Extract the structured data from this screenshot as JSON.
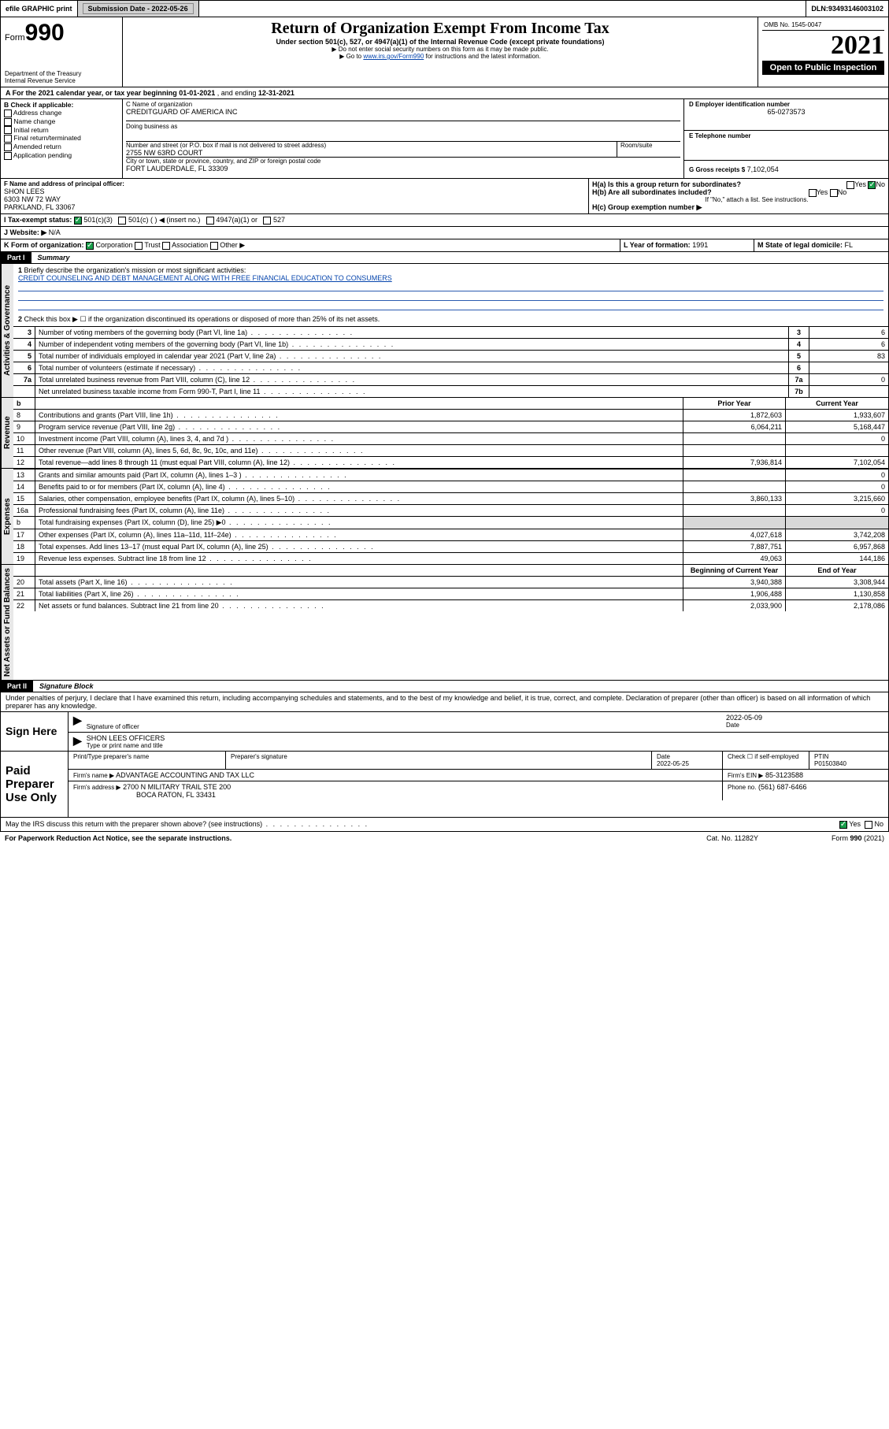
{
  "topbar": {
    "efile": "efile GRAPHIC print",
    "subdate_lbl": "Submission Date - ",
    "subdate": "2022-05-26",
    "dln_lbl": "DLN: ",
    "dln": "93493146003102"
  },
  "header": {
    "form_word": "Form",
    "form_num": "990",
    "dept": "Department of the Treasury\nInternal Revenue Service",
    "title": "Return of Organization Exempt From Income Tax",
    "sub1": "Under section 501(c), 527, or 4947(a)(1) of the Internal Revenue Code (except private foundations)",
    "sub2": "▶ Do not enter social security numbers on this form as it may be made public.",
    "sub3": "▶ Go to www.irs.gov/Form990 for instructions and the latest information.",
    "omb": "OMB No. 1545-0047",
    "year": "2021",
    "open": "Open to Public Inspection"
  },
  "lineA": {
    "prefix": "A For the 2021 calendar year, or tax year beginning ",
    "begin": "01-01-2021",
    "mid": " , and ending ",
    "end": "12-31-2021"
  },
  "boxB": {
    "lbl": "B Check if applicable:",
    "items": [
      "Address change",
      "Name change",
      "Initial return",
      "Final return/terminated",
      "Amended return",
      "Application pending"
    ]
  },
  "boxC": {
    "name_lbl": "C Name of organization",
    "name": "CREDITGUARD OF AMERICA INC",
    "dba_lbl": "Doing business as",
    "addr_lbl": "Number and street (or P.O. box if mail is not delivered to street address)",
    "room_lbl": "Room/suite",
    "addr": "2755 NW 63RD COURT",
    "city_lbl": "City or town, state or province, country, and ZIP or foreign postal code",
    "city": "FORT LAUDERDALE, FL  33309"
  },
  "boxD": {
    "lbl": "D Employer identification number",
    "val": "65-0273573"
  },
  "boxE": {
    "lbl": "E Telephone number",
    "val": ""
  },
  "boxG": {
    "lbl": "G Gross receipts $",
    "val": "7,102,054"
  },
  "boxF": {
    "lbl": "F Name and address of principal officer:",
    "name": "SHON LEES",
    "addr1": "6303 NW 72 WAY",
    "addr2": "PARKLAND, FL  33067"
  },
  "boxH": {
    "a": "H(a)  Is this a group return for subordinates?",
    "b": "H(b)  Are all subordinates included?",
    "note": "If \"No,\" attach a list. See instructions.",
    "c": "H(c)  Group exemption number ▶",
    "yes": "Yes",
    "no": "No"
  },
  "lineI": {
    "lbl": "I  Tax-exempt status:",
    "a": "501(c)(3)",
    "b": "501(c) (  ) ◀ (insert no.)",
    "c": "4947(a)(1) or",
    "d": "527"
  },
  "lineJ": {
    "lbl": "J  Website: ▶",
    "val": "N/A"
  },
  "lineK": {
    "lbl": "K Form of organization:",
    "a": "Corporation",
    "b": "Trust",
    "c": "Association",
    "d": "Other ▶"
  },
  "lineL": {
    "lbl": "L Year of formation: ",
    "val": "1991"
  },
  "lineM": {
    "lbl": "M State of legal domicile: ",
    "val": "FL"
  },
  "part1": {
    "lbl": "Part I",
    "title": "Summary"
  },
  "summary": {
    "q1": "Briefly describe the organization's mission or most significant activities:",
    "mission": "CREDIT COUNSELING AND DEBT MANAGEMENT ALONG WITH FREE FINANCIAL EDUCATION TO CONSUMERS",
    "q2": "Check this box ▶ ☐  if the organization discontinued its operations or disposed of more than 25% of its net assets.",
    "rows": [
      {
        "n": "3",
        "t": "Number of voting members of the governing body (Part VI, line 1a)",
        "b": "3",
        "v": "6"
      },
      {
        "n": "4",
        "t": "Number of independent voting members of the governing body (Part VI, line 1b)",
        "b": "4",
        "v": "6"
      },
      {
        "n": "5",
        "t": "Total number of individuals employed in calendar year 2021 (Part V, line 2a)",
        "b": "5",
        "v": "83"
      },
      {
        "n": "6",
        "t": "Total number of volunteers (estimate if necessary)",
        "b": "6",
        "v": ""
      },
      {
        "n": "7a",
        "t": "Total unrelated business revenue from Part VIII, column (C), line 12",
        "b": "7a",
        "v": "0"
      },
      {
        "n": "",
        "t": "Net unrelated business taxable income from Form 990-T, Part I, line 11",
        "b": "7b",
        "v": ""
      }
    ],
    "col_prior": "Prior Year",
    "col_curr": "Current Year",
    "rev": [
      {
        "n": "8",
        "t": "Contributions and grants (Part VIII, line 1h)",
        "p": "1,872,603",
        "c": "1,933,607"
      },
      {
        "n": "9",
        "t": "Program service revenue (Part VIII, line 2g)",
        "p": "6,064,211",
        "c": "5,168,447"
      },
      {
        "n": "10",
        "t": "Investment income (Part VIII, column (A), lines 3, 4, and 7d )",
        "p": "",
        "c": "0"
      },
      {
        "n": "11",
        "t": "Other revenue (Part VIII, column (A), lines 5, 6d, 8c, 9c, 10c, and 11e)",
        "p": "",
        "c": ""
      },
      {
        "n": "12",
        "t": "Total revenue—add lines 8 through 11 (must equal Part VIII, column (A), line 12)",
        "p": "7,936,814",
        "c": "7,102,054"
      }
    ],
    "exp": [
      {
        "n": "13",
        "t": "Grants and similar amounts paid (Part IX, column (A), lines 1–3 )",
        "p": "",
        "c": "0"
      },
      {
        "n": "14",
        "t": "Benefits paid to or for members (Part IX, column (A), line 4)",
        "p": "",
        "c": "0"
      },
      {
        "n": "15",
        "t": "Salaries, other compensation, employee benefits (Part IX, column (A), lines 5–10)",
        "p": "3,860,133",
        "c": "3,215,660"
      },
      {
        "n": "16a",
        "t": "Professional fundraising fees (Part IX, column (A), line 11e)",
        "p": "",
        "c": "0"
      },
      {
        "n": "b",
        "t": "Total fundraising expenses (Part IX, column (D), line 25) ▶0",
        "p": "GRAY",
        "c": "GRAY"
      },
      {
        "n": "17",
        "t": "Other expenses (Part IX, column (A), lines 11a–11d, 11f–24e)",
        "p": "4,027,618",
        "c": "3,742,208"
      },
      {
        "n": "18",
        "t": "Total expenses. Add lines 13–17 (must equal Part IX, column (A), line 25)",
        "p": "7,887,751",
        "c": "6,957,868"
      },
      {
        "n": "19",
        "t": "Revenue less expenses. Subtract line 18 from line 12",
        "p": "49,063",
        "c": "144,186"
      }
    ],
    "col_beg": "Beginning of Current Year",
    "col_end": "End of Year",
    "net": [
      {
        "n": "20",
        "t": "Total assets (Part X, line 16)",
        "p": "3,940,388",
        "c": "3,308,944"
      },
      {
        "n": "21",
        "t": "Total liabilities (Part X, line 26)",
        "p": "1,906,488",
        "c": "1,130,858"
      },
      {
        "n": "22",
        "t": "Net assets or fund balances. Subtract line 21 from line 20",
        "p": "2,033,900",
        "c": "2,178,086"
      }
    ],
    "vtabs": [
      "Activities & Governance",
      "Revenue",
      "Expenses",
      "Net Assets or Fund Balances"
    ]
  },
  "part2": {
    "lbl": "Part II",
    "title": "Signature Block"
  },
  "sig": {
    "decl": "Under penalties of perjury, I declare that I have examined this return, including accompanying schedules and statements, and to the best of my knowledge and belief, it is true, correct, and complete. Declaration of preparer (other than officer) is based on all information of which preparer has any knowledge.",
    "here": "Sign Here",
    "sig_officer": "Signature of officer",
    "date_lbl": "Date",
    "date": "2022-05-09",
    "name": "SHON LEES  OFFICERS",
    "type_lbl": "Type or print name and title",
    "paid": "Paid Preparer Use Only",
    "prep_name_lbl": "Print/Type preparer's name",
    "prep_sig_lbl": "Preparer's signature",
    "prep_date_lbl": "Date",
    "prep_date": "2022-05-25",
    "check_lbl": "Check ☐ if self-employed",
    "ptin_lbl": "PTIN",
    "ptin": "P01503840",
    "firm_name_lbl": "Firm's name  ▶",
    "firm_name": "ADVANTAGE ACCOUNTING AND TAX LLC",
    "firm_ein_lbl": "Firm's EIN ▶",
    "firm_ein": "85-3123588",
    "firm_addr_lbl": "Firm's address ▶",
    "firm_addr1": "2700 N MILITARY TRAIL STE 200",
    "firm_addr2": "BOCA RATON, FL  33431",
    "phone_lbl": "Phone no.",
    "phone": "(561) 687-6466",
    "discuss": "May the IRS discuss this return with the preparer shown above? (see instructions)",
    "yes": "Yes",
    "no": "No"
  },
  "footer": {
    "left": "For Paperwork Reduction Act Notice, see the separate instructions.",
    "mid": "Cat. No. 11282Y",
    "right": "Form 990 (2021)"
  }
}
